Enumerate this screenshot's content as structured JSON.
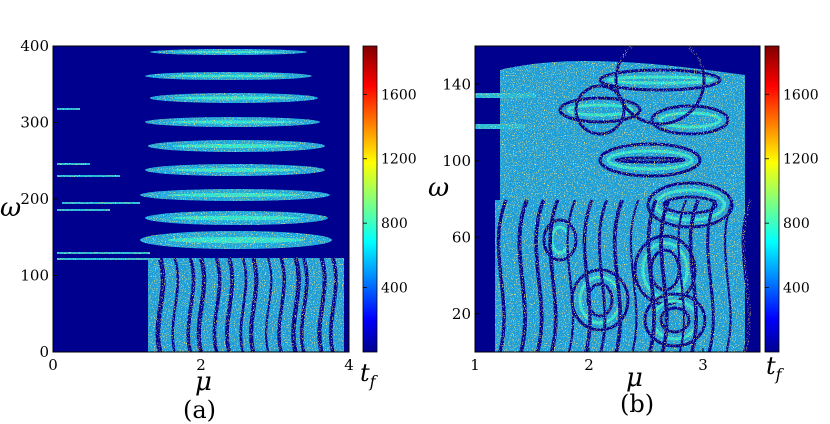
{
  "chart_data": [
    {
      "type": "heatmap",
      "panel_label": "(a)",
      "xlabel": "μ",
      "ylabel": "ω",
      "colorbar_label": "t_f",
      "xlim": [
        0,
        4
      ],
      "ylim": [
        0,
        400
      ],
      "x_ticks": [
        "0",
        "2",
        "4"
      ],
      "y_ticks": [
        "0",
        "100",
        "200",
        "300",
        "400"
      ],
      "colorbar_ticks": [
        "400",
        "800",
        "1200",
        "1600"
      ],
      "colorbar_range": [
        0,
        1900
      ],
      "colormap": "jet",
      "background_color": "#00008f"
    },
    {
      "type": "heatmap",
      "panel_label": "(b)",
      "xlabel": "μ",
      "ylabel": "ω",
      "colorbar_label": "t_f",
      "xlim": [
        1,
        3.5
      ],
      "ylim": [
        0,
        160
      ],
      "x_ticks": [
        "1",
        "2",
        "3"
      ],
      "y_ticks": [
        "20",
        "60",
        "100",
        "140"
      ],
      "colorbar_ticks": [
        "400",
        "800",
        "1200",
        "1600"
      ],
      "colorbar_range": [
        0,
        1900
      ],
      "colormap": "jet",
      "background_color": "#00008f"
    }
  ]
}
